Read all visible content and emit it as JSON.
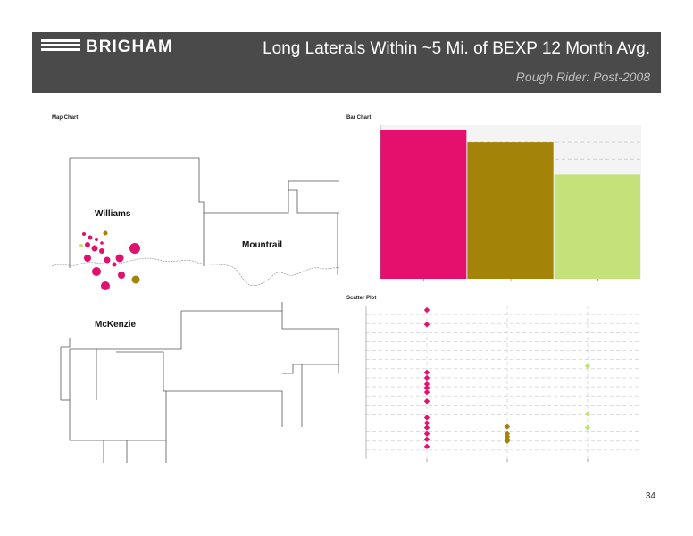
{
  "header": {
    "logo_text": "BRIGHAM",
    "title": "Long Laterals Within ~5 Mi. of BEXP 12 Month Avg.",
    "subtitle": "Rough Rider:  Post-2008"
  },
  "map": {
    "label": "Map Chart",
    "counties": [
      "Williams",
      "Mountrail",
      "McKenzie"
    ],
    "marker_colors": {
      "pink": "#e0106e",
      "olive": "#a38308"
    }
  },
  "bar_panel": {
    "label": "Bar Chart"
  },
  "scatter_panel": {
    "label": "Scatter Plot"
  },
  "colors": {
    "bexp": "#e5106e",
    "olive": "#a38308",
    "lime": "#c5e27a"
  },
  "chart_data": [
    {
      "type": "bar",
      "categories": [
        "",
        "",
        ""
      ],
      "values": [
        87,
        80,
        61
      ],
      "ylim": [
        0,
        90
      ],
      "grid": true
    },
    {
      "type": "scatter",
      "categories": [
        "",
        "",
        ""
      ],
      "series": [
        {
          "x": [
            0,
            0,
            0,
            0,
            0,
            0,
            0,
            0,
            0,
            0,
            0,
            0,
            0,
            0
          ],
          "y": [
            165,
            149,
            96,
            90,
            83,
            79,
            74,
            64,
            46,
            40,
            35,
            28,
            22,
            14
          ]
        },
        {
          "x": [
            1,
            1,
            1,
            1,
            1
          ],
          "y": [
            36,
            28,
            25,
            22,
            20
          ]
        },
        {
          "x": [
            2,
            2,
            2
          ],
          "y": [
            103,
            50,
            35
          ]
        }
      ],
      "ylim": [
        0,
        170
      ],
      "grid": true
    }
  ],
  "page_number": "34"
}
